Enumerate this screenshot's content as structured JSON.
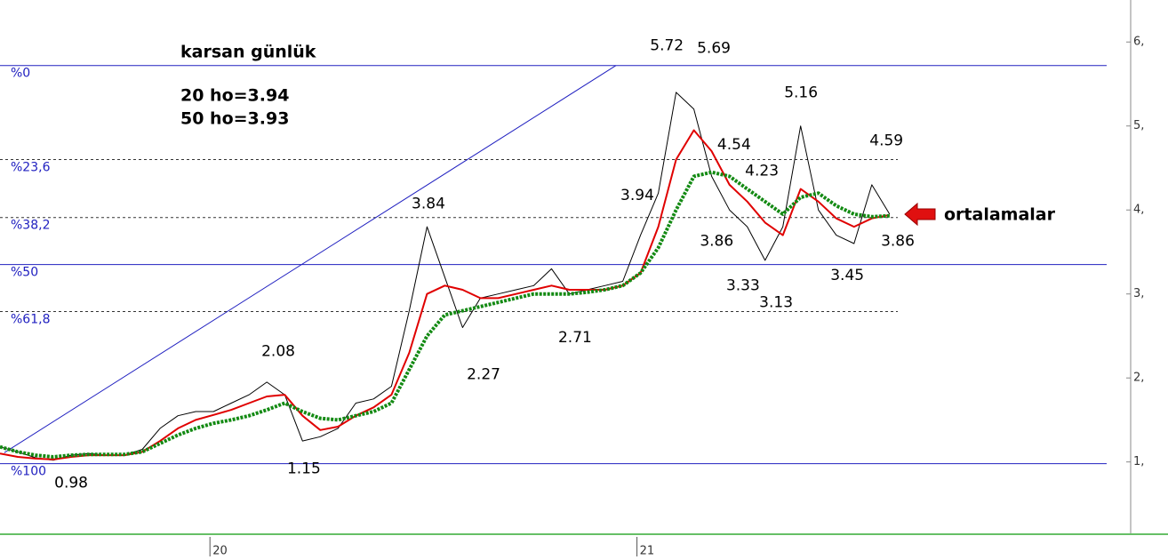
{
  "chart_data": {
    "type": "line",
    "title": "karsan günlük",
    "notes": [
      "20 ho=3.94",
      "50 ho=3.93"
    ],
    "callout": "ortalamalar",
    "x": [
      6.1,
      6.6,
      7.1,
      7.6,
      8.1,
      8.6,
      9.1,
      9.6,
      10.1,
      10.6,
      11.1,
      11.6,
      12.1,
      12.6,
      13.1,
      13.6,
      14.1,
      14.6,
      15.1,
      15.6,
      16.1,
      16.6,
      17.1,
      17.6,
      18.1,
      18.6,
      19.1,
      19.6,
      20.1,
      20.6,
      21.1,
      21.6,
      22.1,
      22.6,
      23.1,
      23.6,
      24.1,
      24.6,
      25.1,
      25.6,
      26.1,
      26.6,
      27.1,
      27.6,
      28.1,
      28.6,
      29.1,
      29.6,
      30.1,
      30.6,
      31.1
    ],
    "series": [
      {
        "color": "#000000",
        "width": 1,
        "dotted": false,
        "values": [
          1.18,
          1.12,
          1.05,
          1.02,
          1.08,
          1.1,
          1.08,
          1.08,
          1.15,
          1.4,
          1.55,
          1.6,
          1.6,
          1.7,
          1.8,
          1.95,
          1.8,
          1.25,
          1.3,
          1.4,
          1.7,
          1.75,
          1.9,
          2.8,
          3.8,
          3.2,
          2.6,
          2.95,
          3.0,
          3.05,
          3.1,
          3.3,
          3.0,
          3.05,
          3.1,
          3.15,
          3.7,
          4.2,
          5.4,
          5.2,
          4.4,
          4.0,
          3.8,
          3.4,
          3.8,
          5.0,
          4.0,
          3.7,
          3.6,
          4.3,
          3.95
        ]
      },
      {
        "color": "#e00000",
        "width": 2,
        "dotted": false,
        "values": [
          1.1,
          1.06,
          1.04,
          1.03,
          1.06,
          1.08,
          1.08,
          1.08,
          1.12,
          1.25,
          1.4,
          1.5,
          1.56,
          1.62,
          1.7,
          1.78,
          1.8,
          1.55,
          1.38,
          1.42,
          1.55,
          1.65,
          1.8,
          2.3,
          3.0,
          3.1,
          3.05,
          2.95,
          2.95,
          3.0,
          3.05,
          3.1,
          3.05,
          3.05,
          3.05,
          3.1,
          3.25,
          3.8,
          4.6,
          4.95,
          4.7,
          4.3,
          4.1,
          3.85,
          3.7,
          4.25,
          4.1,
          3.9,
          3.8,
          3.9,
          3.94
        ]
      },
      {
        "color": "#138a13",
        "width": 4,
        "dotted": true,
        "values": [
          1.18,
          1.12,
          1.08,
          1.06,
          1.08,
          1.09,
          1.09,
          1.09,
          1.12,
          1.22,
          1.32,
          1.4,
          1.46,
          1.5,
          1.55,
          1.62,
          1.7,
          1.6,
          1.52,
          1.5,
          1.55,
          1.6,
          1.7,
          2.1,
          2.5,
          2.75,
          2.8,
          2.85,
          2.9,
          2.95,
          3.0,
          3.0,
          3.0,
          3.02,
          3.05,
          3.1,
          3.25,
          3.55,
          4.0,
          4.4,
          4.45,
          4.4,
          4.25,
          4.1,
          3.95,
          4.15,
          4.2,
          4.05,
          3.95,
          3.92,
          3.93
        ]
      }
    ],
    "fib_levels": [
      {
        "label": "%0",
        "value": 5.72,
        "dashed": false
      },
      {
        "label": "%23,6",
        "value": 4.6,
        "dashed": true
      },
      {
        "label": "%38,2",
        "value": 3.91,
        "dashed": true
      },
      {
        "label": "%50",
        "value": 3.35,
        "dashed": false
      },
      {
        "label": "%61,8",
        "value": 2.79,
        "dashed": true
      },
      {
        "label": "%100",
        "value": 0.98,
        "dashed": false
      }
    ],
    "trendline": {
      "x": [
        6.22,
        23.41
      ],
      "y": [
        1.11,
        5.72
      ],
      "color": "#2020c0"
    },
    "annotations": [
      {
        "label": "5.72",
        "value": 5.72,
        "x": 24.84,
        "pos": "above"
      },
      {
        "label": "5.69",
        "value": 5.69,
        "x": 26.16,
        "pos": "above"
      },
      {
        "label": "5.16",
        "value": 5.16,
        "x": 28.61,
        "pos": "above"
      },
      {
        "label": "4.54",
        "value": 4.54,
        "x": 26.73,
        "pos": "above"
      },
      {
        "label": "4.23",
        "value": 4.23,
        "x": 27.51,
        "pos": "above"
      },
      {
        "label": "3.94",
        "value": 3.94,
        "x": 24.01,
        "pos": "above"
      },
      {
        "label": "3.86",
        "value": 3.86,
        "x": 26.24,
        "pos": "below"
      },
      {
        "label": "3.86",
        "value": 3.86,
        "x": 31.33,
        "pos": "below"
      },
      {
        "label": "3.84",
        "value": 3.84,
        "x": 18.14,
        "pos": "above"
      },
      {
        "label": "3.33",
        "value": 3.33,
        "x": 26.98,
        "pos": "below"
      },
      {
        "label": "3.13",
        "value": 3.13,
        "x": 27.91,
        "pos": "below"
      },
      {
        "label": "3.45",
        "value": 3.45,
        "x": 29.91,
        "pos": "below"
      },
      {
        "label": "4.59",
        "value": 4.59,
        "x": 31.01,
        "pos": "above"
      },
      {
        "label": "2.08",
        "value": 2.08,
        "x": 13.92,
        "pos": "above"
      },
      {
        "label": "2.27",
        "value": 2.27,
        "x": 19.69,
        "pos": "below"
      },
      {
        "label": "2.71",
        "value": 2.71,
        "x": 22.26,
        "pos": "below"
      },
      {
        "label": "1.15",
        "value": 1.15,
        "x": 14.64,
        "pos": "below"
      },
      {
        "label": "0.98",
        "value": 0.98,
        "x": 8.1,
        "pos": "below"
      }
    ],
    "xlim": [
      6.1,
      37.2
    ],
    "ylim": [
      0.15,
      6.5
    ],
    "xticks": [
      {
        "value": 12,
        "label": "20"
      },
      {
        "value": 24,
        "label": "21"
      }
    ],
    "yticks": [
      {
        "value": 1,
        "label": "1,"
      },
      {
        "value": 2,
        "label": "2,"
      },
      {
        "value": 3,
        "label": "3,"
      },
      {
        "value": 4,
        "label": "4,"
      },
      {
        "value": 5,
        "label": "5,"
      },
      {
        "value": 6,
        "label": "6,"
      }
    ]
  }
}
